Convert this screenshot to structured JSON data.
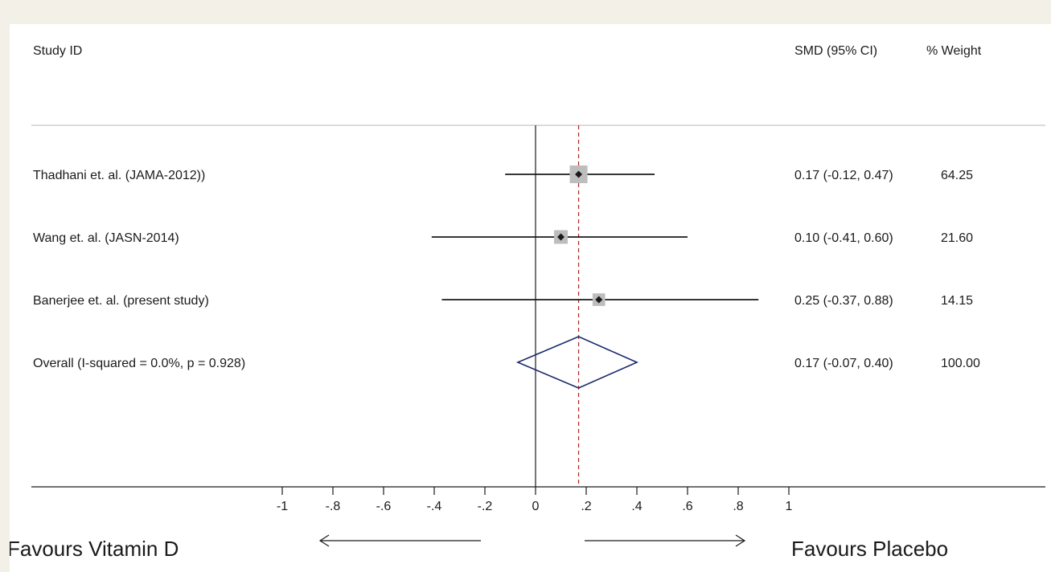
{
  "headers": {
    "study": "Study ID",
    "effect": "SMD (95% CI)",
    "weight": "% Weight"
  },
  "chart_data": {
    "type": "forest",
    "x_domain": [
      -1,
      1
    ],
    "ticks": [
      {
        "value": -1,
        "label": "-1"
      },
      {
        "value": -0.8,
        "label": "-.8"
      },
      {
        "value": -0.6,
        "label": "-.6"
      },
      {
        "value": -0.4,
        "label": "-.4"
      },
      {
        "value": -0.2,
        "label": "-.2"
      },
      {
        "value": 0,
        "label": "0"
      },
      {
        "value": 0.2,
        "label": ".2"
      },
      {
        "value": 0.4,
        "label": ".4"
      },
      {
        "value": 0.6,
        "label": ".6"
      },
      {
        "value": 0.8,
        "label": ".8"
      },
      {
        "value": 1,
        "label": "1"
      }
    ],
    "studies": [
      {
        "label": "Thadhani et. al. (JAMA-2012))",
        "smd": 0.17,
        "lo": -0.12,
        "hi": 0.47,
        "ci_text": "0.17 (-0.12, 0.47)",
        "weight": 64.25,
        "weight_text": "64.25"
      },
      {
        "label": "Wang et. al. (JASN-2014)",
        "smd": 0.1,
        "lo": -0.41,
        "hi": 0.6,
        "ci_text": "0.10 (-0.41, 0.60)",
        "weight": 21.6,
        "weight_text": "21.60"
      },
      {
        "label": "Banerjee et. al. (present study)",
        "smd": 0.25,
        "lo": -0.37,
        "hi": 0.88,
        "ci_text": "0.25 (-0.37, 0.88)",
        "weight": 14.15,
        "weight_text": "14.15"
      }
    ],
    "overall": {
      "label": "Overall  (I-squared = 0.0%, p = 0.928)",
      "smd": 0.17,
      "lo": -0.07,
      "hi": 0.4,
      "ci_text": "0.17 (-0.07, 0.40)",
      "weight_text": "100.00"
    },
    "favours_left": "Favours Vitamin D",
    "favours_right": "Favours Placebo",
    "colors": {
      "line": "#1a1a1a",
      "box": "#bdbdbd",
      "diamond": "#1c2a6e",
      "reference": "#b22222",
      "separator": "#c8c8c8"
    }
  }
}
